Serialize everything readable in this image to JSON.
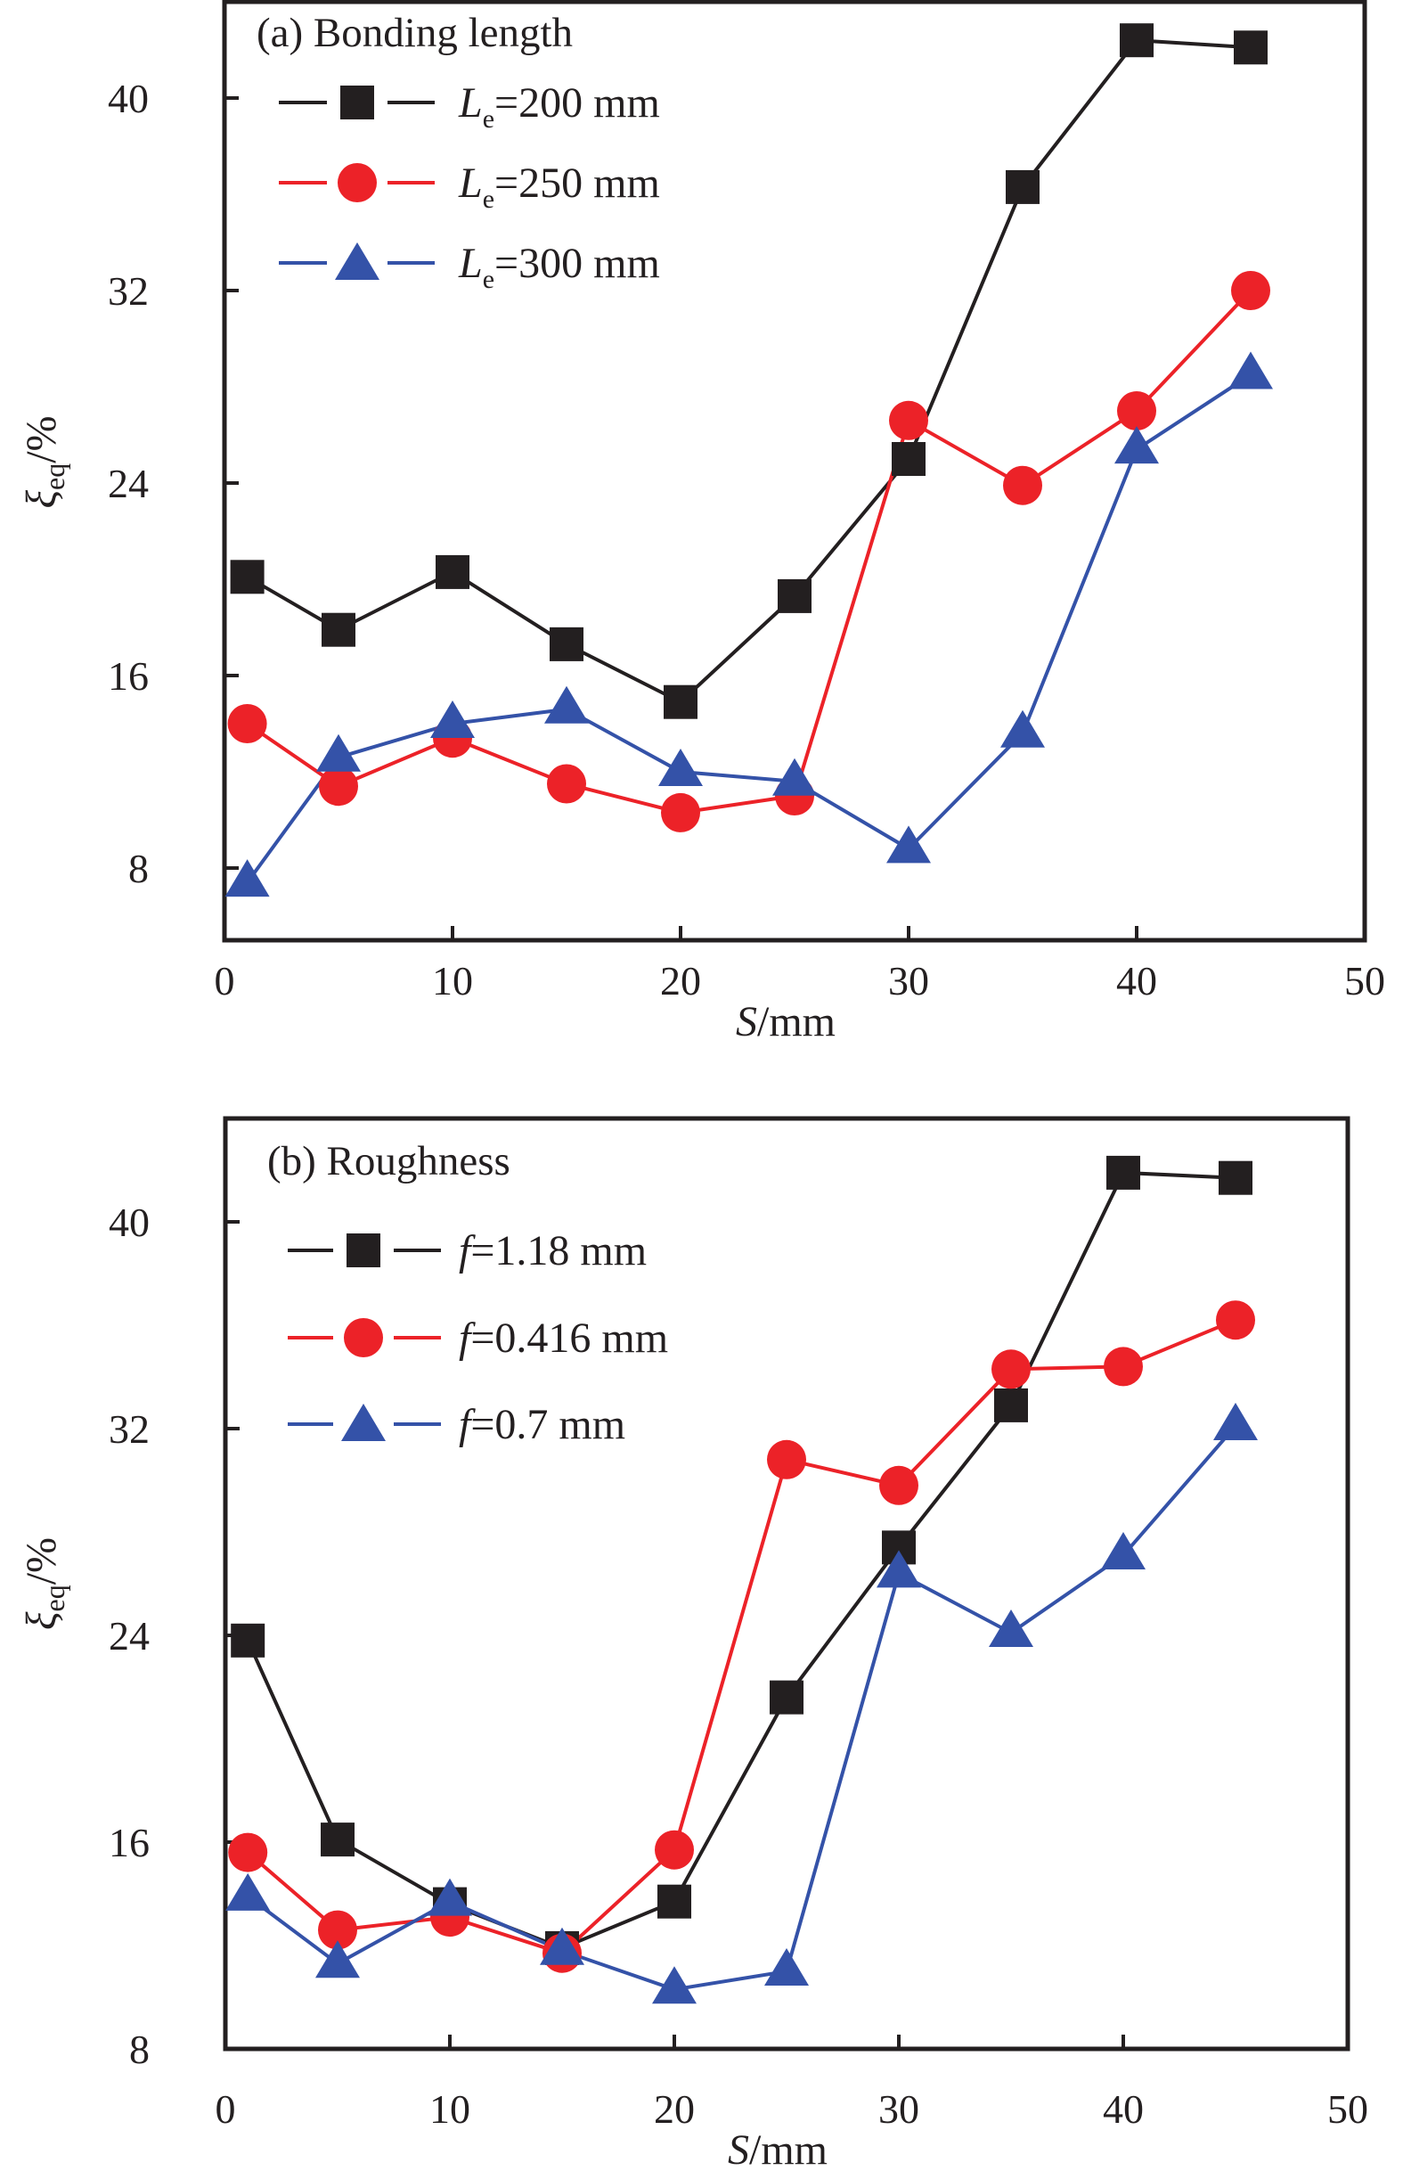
{
  "chart_data": [
    {
      "type": "line",
      "panel": "a",
      "title": "(a) Bonding length",
      "xlabel": "S/mm",
      "xlabel_italic_part": "S",
      "xlabel_rest": "/mm",
      "ylabel_symbol": "ξ",
      "ylabel_subscript": "eq",
      "ylabel_rest": "/%",
      "xlim": [
        0,
        50
      ],
      "ylim": [
        5,
        44
      ],
      "xticks": [
        0,
        10,
        20,
        30,
        40,
        50
      ],
      "yticks": [
        8,
        16,
        24,
        32,
        40
      ],
      "legend_position": "top-left",
      "grid": false,
      "x": [
        1,
        5,
        10,
        15,
        20,
        25,
        30,
        35,
        40,
        45
      ],
      "series": [
        {
          "name": "Le=200 mm",
          "label_main": "L",
          "label_sub": "e",
          "label_rest": "=200 mm",
          "marker": "square",
          "color": "#231f20",
          "values": [
            20.1,
            17.9,
            20.3,
            17.3,
            14.9,
            19.3,
            25.0,
            36.3,
            42.4,
            42.1
          ]
        },
        {
          "name": "Le=250 mm",
          "label_main": "L",
          "label_sub": "e",
          "label_rest": "=250 mm",
          "marker": "circle",
          "color": "#ec2228",
          "values": [
            14.0,
            11.4,
            13.4,
            11.5,
            10.3,
            11.0,
            26.6,
            23.9,
            27.0,
            32.0
          ]
        },
        {
          "name": "Le=300 mm",
          "label_main": "L",
          "label_sub": "e",
          "label_rest": "=300 mm",
          "marker": "triangle",
          "color": "#3452a8",
          "values": [
            7.4,
            12.6,
            14.0,
            14.6,
            12.0,
            11.6,
            8.8,
            13.6,
            25.4,
            28.5
          ]
        }
      ]
    },
    {
      "type": "line",
      "panel": "b",
      "title": "(b) Roughness",
      "xlabel": "S/mm",
      "xlabel_italic_part": "S",
      "xlabel_rest": "/mm",
      "ylabel_symbol": "ξ",
      "ylabel_subscript": "eq",
      "ylabel_rest": "/%",
      "xlim": [
        0,
        50
      ],
      "ylim": [
        8,
        44
      ],
      "xticks": [
        0,
        10,
        20,
        30,
        40,
        50
      ],
      "yticks": [
        8,
        16,
        24,
        32,
        40
      ],
      "legend_position": "top-left",
      "grid": false,
      "x": [
        1,
        5,
        10,
        15,
        20,
        25,
        30,
        35,
        40,
        45
      ],
      "series": [
        {
          "name": "f=1.18 mm",
          "label_main": "f",
          "label_sub": "",
          "label_rest": "=1.18 mm",
          "marker": "square",
          "color": "#231f20",
          "values": [
            23.8,
            16.1,
            13.6,
            11.9,
            13.7,
            21.6,
            27.4,
            32.9,
            41.9,
            41.7
          ]
        },
        {
          "name": "f=0.416 mm",
          "label_main": "f",
          "label_sub": "",
          "label_rest": "=0.416 mm",
          "marker": "circle",
          "color": "#ec2228",
          "values": [
            15.6,
            12.6,
            13.1,
            11.7,
            15.7,
            30.8,
            29.8,
            34.3,
            34.4,
            36.2
          ]
        },
        {
          "name": "f=0.7 mm",
          "label_main": "f",
          "label_sub": "",
          "label_rest": "=0.7 mm",
          "marker": "triangle",
          "color": "#3452a8",
          "values": [
            13.9,
            11.3,
            13.7,
            11.8,
            10.3,
            11.0,
            26.4,
            24.1,
            27.1,
            32.1
          ]
        }
      ]
    }
  ]
}
